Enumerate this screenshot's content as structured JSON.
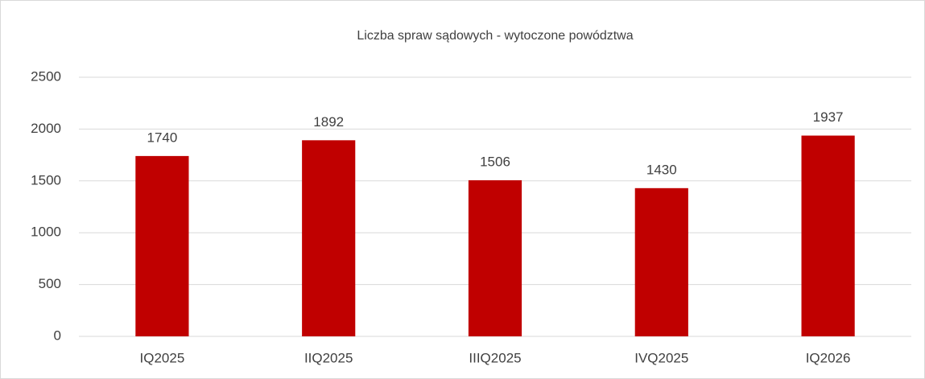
{
  "chart_data": {
    "type": "bar",
    "title": "Liczba spraw sądowych - wytoczone powództwa",
    "categories": [
      "IQ2025",
      "IIQ2025",
      "IIIQ2025",
      "IVQ2025",
      "IQ2026"
    ],
    "values": [
      1740,
      1892,
      1506,
      1430,
      1937
    ],
    "color": "#c00000",
    "ylim": [
      0,
      2500
    ],
    "yticks": [
      0,
      500,
      1000,
      1500,
      2000,
      2500
    ],
    "grid": true
  }
}
